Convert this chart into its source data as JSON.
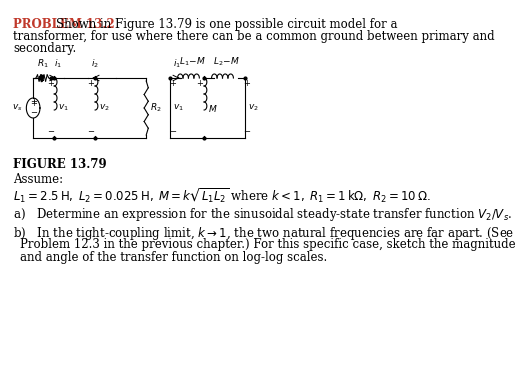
{
  "title_color": "#c0392b",
  "title_label": "PROBLEM 13.2",
  "title_text": "  Shown in Figure 13.79 is one possible circuit model for a\ntransformer, for use where there can be a common ground between primary and\nsecondary.",
  "figure_label": "FIGURE 13.79",
  "assume_label": "Assume:",
  "equation_line": "$L_1 = 2.5\\,\\mathrm{H},\\; L_2 = 0.025\\,\\mathrm{H},\\; M = k\\sqrt{L_1 L_2}$ where $k < 1,\\; R_1 = 1\\,\\mathrm{k\\Omega},\\; R_2 = 10\\,\\Omega.$",
  "part_a": "a) Determine an expression for the sinusoidal steady-state transfer function $V_2/V_s$.",
  "part_b": "b) In the tight-coupling limit, $k \\to 1$, the two natural frequencies are far apart. (See\n  Problem 12.3 in the previous chapter.) For this specific case, sketch the magnitude\n  and angle of the transfer function on log-log scales.",
  "bg_color": "#ffffff",
  "text_color": "#000000",
  "font_size_body": 8.5,
  "font_size_label": 8.5
}
